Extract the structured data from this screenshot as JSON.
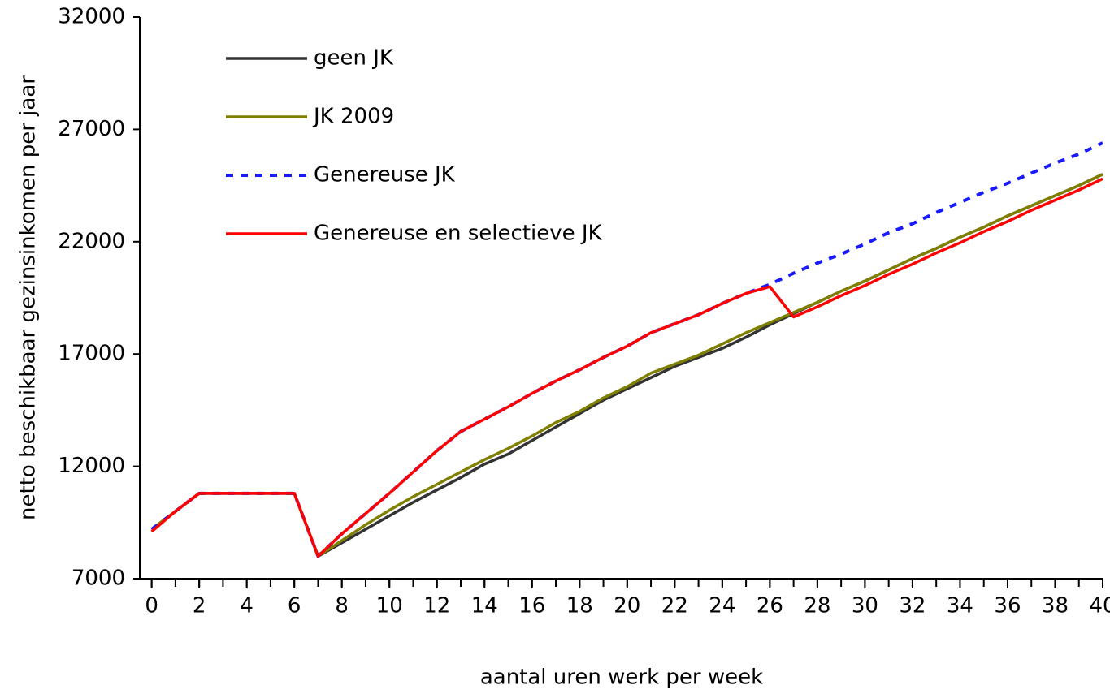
{
  "chart_data": {
    "type": "line",
    "x_label": "aantal uren werk per week",
    "y_label": "netto beschikbaar gezinsinkomen per jaar",
    "x": [
      0,
      1,
      2,
      3,
      4,
      5,
      6,
      7,
      8,
      9,
      10,
      11,
      12,
      13,
      14,
      15,
      16,
      17,
      18,
      19,
      20,
      21,
      22,
      23,
      24,
      25,
      26,
      27,
      28,
      29,
      30,
      31,
      32,
      33,
      34,
      35,
      36,
      37,
      38,
      39,
      40
    ],
    "xlim": [
      -0.5,
      40
    ],
    "xticks": [
      0,
      2,
      4,
      6,
      8,
      10,
      12,
      14,
      16,
      18,
      20,
      22,
      24,
      26,
      28,
      30,
      32,
      34,
      36,
      38,
      40
    ],
    "ylim": [
      7000,
      32000
    ],
    "yticks": [
      7000,
      12000,
      17000,
      22000,
      27000,
      32000
    ],
    "legend": "top-left",
    "series": [
      {
        "name": "geen JK",
        "color": "#333333",
        "dash": false,
        "values": [
          9200,
          10000,
          10800,
          10800,
          10800,
          10800,
          10800,
          8000,
          8600,
          9200,
          9800,
          10400,
          10950,
          11500,
          12100,
          12550,
          13150,
          13750,
          14350,
          14950,
          15450,
          15950,
          16450,
          16850,
          17250,
          17750,
          18300,
          18800,
          19300,
          19800,
          20250,
          20750,
          21250,
          21700,
          22200,
          22650,
          23150,
          23600,
          24050,
          24500,
          25000
        ]
      },
      {
        "name": "JK 2009",
        "color": "#808000",
        "dash": false,
        "values": [
          9200,
          10000,
          10800,
          10800,
          10800,
          10800,
          10800,
          8000,
          8700,
          9400,
          10050,
          10650,
          11200,
          11750,
          12300,
          12800,
          13350,
          13950,
          14450,
          15050,
          15550,
          16150,
          16550,
          16950,
          17450,
          17950,
          18400,
          18850,
          19300,
          19800,
          20250,
          20750,
          21250,
          21700,
          22200,
          22650,
          23150,
          23600,
          24050,
          24500,
          25000
        ]
      },
      {
        "name": "Genereuse JK",
        "color": "#1a1aff",
        "dash": true,
        "values": [
          9200,
          10000,
          10800,
          10800,
          10800,
          10800,
          10800,
          8000,
          9000,
          9900,
          10800,
          11750,
          12700,
          13550,
          14100,
          14650,
          15250,
          15800,
          16300,
          16850,
          17350,
          17950,
          18350,
          18750,
          19250,
          19700,
          20100,
          20600,
          21050,
          21450,
          21900,
          22400,
          22800,
          23300,
          23750,
          24200,
          24600,
          25050,
          25500,
          25900,
          26400
        ]
      },
      {
        "name": "Genereuse en selectieve JK",
        "color": "#ff0000",
        "dash": false,
        "values": [
          9100,
          10000,
          10800,
          10800,
          10800,
          10800,
          10800,
          8000,
          9000,
          9900,
          10800,
          11750,
          12700,
          13550,
          14100,
          14650,
          15250,
          15800,
          16300,
          16850,
          17350,
          17950,
          18350,
          18750,
          19250,
          19700,
          20000,
          18650,
          19100,
          19600,
          20050,
          20550,
          21000,
          21500,
          21950,
          22450,
          22900,
          23400,
          23850,
          24300,
          24800
        ]
      }
    ]
  }
}
